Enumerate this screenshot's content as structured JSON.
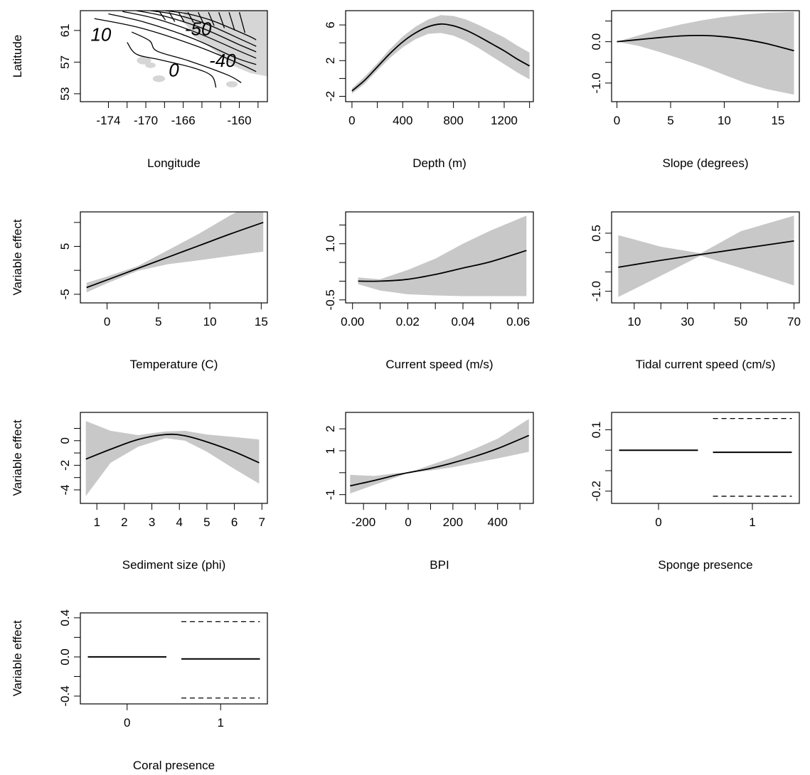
{
  "chart_data": [
    {
      "type": "contour",
      "panel": "spatial",
      "xlabel": "Longitude",
      "ylabel": "Latitude",
      "xlim": [
        -177,
        -157
      ],
      "ylim": [
        52,
        63.5
      ],
      "xticks": [
        -174,
        -170,
        -166,
        -160
      ],
      "xticks_unlabeled": [
        -172,
        -168,
        -164,
        -162,
        -158
      ],
      "yticks": [
        53,
        57,
        61
      ],
      "contour_labels": [
        {
          "text": "10",
          "x": -174.8,
          "y": 60.3
        },
        {
          "text": "-50",
          "x": -164.4,
          "y": 61.0
        },
        {
          "text": "0",
          "x": -167.0,
          "y": 55.8
        },
        {
          "text": "-40",
          "x": -161.8,
          "y": 57.0
        }
      ],
      "contours": [
        [
          [
            -175.5,
            62.5
          ],
          [
            -170.5,
            61.3
          ],
          [
            -164.5,
            59.0
          ],
          [
            -160.0,
            56.8
          ],
          [
            -158.2,
            55.8
          ]
        ],
        [
          [
            -174.0,
            63.1
          ],
          [
            -170.0,
            62.0
          ],
          [
            -165.0,
            60.0
          ],
          [
            -160.5,
            57.6
          ],
          [
            -158.2,
            56.7
          ]
        ],
        [
          [
            -172.5,
            63.4
          ],
          [
            -169.0,
            62.5
          ],
          [
            -164.5,
            60.7
          ],
          [
            -160.0,
            58.4
          ],
          [
            -158.2,
            57.5
          ]
        ],
        [
          [
            -171.0,
            63.5
          ],
          [
            -168.0,
            62.8
          ],
          [
            -164.0,
            61.3
          ],
          [
            -160.0,
            59.2
          ],
          [
            -158.2,
            58.3
          ]
        ],
        [
          [
            -169.5,
            63.5
          ],
          [
            -166.8,
            63.0
          ],
          [
            -163.5,
            61.8
          ],
          [
            -159.5,
            59.7
          ],
          [
            -158.2,
            59.0
          ]
        ],
        [
          [
            -168.0,
            63.5
          ],
          [
            -165.5,
            63.1
          ],
          [
            -162.8,
            62.2
          ],
          [
            -159.0,
            60.3
          ],
          [
            -158.2,
            59.8
          ]
        ],
        [
          [
            -172.0,
            59.5
          ],
          [
            -171.0,
            58.0
          ],
          [
            -168.5,
            57.3
          ],
          [
            -165.0,
            56.3
          ],
          [
            -163.0,
            55.3
          ],
          [
            -162.5,
            53.8
          ]
        ],
        [
          [
            -171.5,
            60.8
          ],
          [
            -169.6,
            59.7
          ],
          [
            -168.8,
            58.4
          ],
          [
            -165.5,
            57.2
          ],
          [
            -161.3,
            55.4
          ],
          [
            -159.8,
            54.4
          ]
        ]
      ],
      "hatch_segments": [
        [
          [
            -168.5,
            63.3
          ],
          [
            -167.9,
            62.3
          ]
        ],
        [
          [
            -167.5,
            63.3
          ],
          [
            -166.9,
            62.1
          ]
        ],
        [
          [
            -166.5,
            63.3
          ],
          [
            -165.9,
            62.1
          ]
        ],
        [
          [
            -165.5,
            63.3
          ],
          [
            -164.9,
            62.0
          ]
        ],
        [
          [
            -164.4,
            63.3
          ],
          [
            -163.8,
            61.8
          ]
        ],
        [
          [
            -163.3,
            63.3
          ],
          [
            -162.7,
            61.6
          ]
        ],
        [
          [
            -162.2,
            63.3
          ],
          [
            -161.6,
            61.3
          ]
        ],
        [
          [
            -161.1,
            63.3
          ],
          [
            -160.5,
            61.0
          ]
        ],
        [
          [
            -160.0,
            63.3
          ],
          [
            -159.4,
            60.7
          ]
        ]
      ],
      "land": [
        [
          -165.8,
          63.5
        ],
        [
          -157,
          63.5
        ],
        [
          -157,
          55.2
        ],
        [
          -158.8,
          55.6
        ],
        [
          -160.8,
          56.6
        ],
        [
          -162.4,
          58.2
        ],
        [
          -163.5,
          59.2
        ],
        [
          -164.8,
          60.2
        ],
        [
          -165.4,
          61.3
        ],
        [
          -166.2,
          62.3
        ]
      ],
      "islands": [
        {
          "x": -170.2,
          "y": 57.2,
          "r": 0.35
        },
        {
          "x": -169.5,
          "y": 56.6,
          "r": 0.25
        },
        {
          "x": -168.6,
          "y": 54.9,
          "r": 0.3
        },
        {
          "x": -160.8,
          "y": 54.2,
          "r": 0.28
        }
      ]
    },
    {
      "type": "line",
      "panel": "depth",
      "xlabel": "Depth (m)",
      "ylabel": "",
      "xlim": [
        -50,
        1430
      ],
      "ylim": [
        -2.6,
        7.6
      ],
      "xticks": [
        0,
        400,
        800,
        1200
      ],
      "xticks_unlabeled": [
        200,
        600,
        1000,
        1400
      ],
      "yticks": [
        -2,
        2,
        6
      ],
      "yticks_unlabeled": [
        0,
        4
      ],
      "x": [
        0,
        100,
        200,
        300,
        400,
        500,
        600,
        700,
        800,
        900,
        1000,
        1100,
        1200,
        1300,
        1400
      ],
      "y": [
        -1.4,
        -0.2,
        1.3,
        2.8,
        4.1,
        5.1,
        5.8,
        6.1,
        5.9,
        5.4,
        4.7,
        3.9,
        3.1,
        2.2,
        1.4
      ],
      "lower": [
        -1.7,
        -0.6,
        0.9,
        2.3,
        3.5,
        4.4,
        5.0,
        5.1,
        4.8,
        4.2,
        3.4,
        2.5,
        1.6,
        0.7,
        -0.1
      ],
      "upper": [
        -1.1,
        0.2,
        1.7,
        3.3,
        4.7,
        5.8,
        6.6,
        7.1,
        7.0,
        6.6,
        6.0,
        5.3,
        4.6,
        3.7,
        2.9
      ]
    },
    {
      "type": "line",
      "panel": "slope",
      "xlabel": "Slope (degrees)",
      "ylabel": "",
      "xlim": [
        -0.5,
        17
      ],
      "ylim": [
        -1.45,
        0.75
      ],
      "xticks": [
        0,
        5,
        10,
        15
      ],
      "yticks": [
        -1.0,
        0.0
      ],
      "yticks_labels": [
        "-1.0",
        "0.0"
      ],
      "yticks_unlabeled": [
        -0.5,
        0.5
      ],
      "x": [
        0,
        2,
        4,
        6,
        8,
        10,
        12,
        14,
        16.5
      ],
      "y": [
        0.0,
        0.05,
        0.1,
        0.14,
        0.15,
        0.12,
        0.05,
        -0.05,
        -0.22
      ],
      "lower": [
        0.0,
        -0.1,
        -0.25,
        -0.42,
        -0.6,
        -0.8,
        -1.0,
        -1.15,
        -1.28
      ],
      "upper": [
        0.0,
        0.15,
        0.3,
        0.42,
        0.52,
        0.6,
        0.66,
        0.7,
        0.72
      ]
    },
    {
      "type": "line",
      "panel": "temperature",
      "xlabel": "Temperature (C)",
      "ylabel": "Variable effect",
      "xlim": [
        -2.6,
        15.6
      ],
      "ylim": [
        -6.8,
        12.2
      ],
      "xticks": [
        0,
        5,
        10,
        15
      ],
      "yticks": [
        -5,
        5
      ],
      "yticks_unlabeled": [
        0,
        10
      ],
      "x": [
        -2,
        0,
        3,
        6,
        9,
        12,
        15.2
      ],
      "y": [
        -3.6,
        -2.0,
        0.4,
        2.8,
        5.2,
        7.6,
        10.0
      ],
      "lower": [
        -4.6,
        -2.7,
        -0.1,
        1.3,
        2.1,
        3.0,
        3.9
      ],
      "upper": [
        -2.6,
        -1.3,
        0.9,
        4.3,
        7.7,
        11.5,
        15.0
      ]
    },
    {
      "type": "line",
      "panel": "current-speed",
      "xlabel": "Current speed (m/s)",
      "ylabel": "",
      "xlim": [
        -0.0025,
        0.0655
      ],
      "ylim": [
        -0.58,
        1.85
      ],
      "xticks": [
        0.0,
        0.02,
        0.04,
        0.06
      ],
      "xticks_labels": [
        "0.00",
        "0.02",
        "0.04",
        "0.06"
      ],
      "xticks_unlabeled": [
        0.01,
        0.03,
        0.05
      ],
      "yticks": [
        -0.5,
        1.0
      ],
      "yticks_labels": [
        "-0.5",
        "1.0"
      ],
      "yticks_unlabeled": [
        0.0,
        0.5,
        1.5
      ],
      "x": [
        0.002,
        0.01,
        0.02,
        0.03,
        0.04,
        0.05,
        0.063
      ],
      "y": [
        0.0,
        0.0,
        0.05,
        0.18,
        0.35,
        0.52,
        0.82
      ],
      "lower": [
        -0.08,
        -0.25,
        -0.35,
        -0.38,
        -0.4,
        -0.4,
        -0.4
      ],
      "upper": [
        0.1,
        0.05,
        0.3,
        0.6,
        1.0,
        1.35,
        1.75
      ]
    },
    {
      "type": "line",
      "panel": "tidal-current-speed",
      "xlabel": "Tidal current speed (cm/s)",
      "ylabel": "",
      "xlim": [
        1.5,
        72
      ],
      "ylim": [
        -1.3,
        1.05
      ],
      "xticks": [
        10,
        30,
        50,
        70
      ],
      "xticks_unlabeled": [
        20,
        40,
        60
      ],
      "yticks": [
        -1.0,
        0.5
      ],
      "yticks_labels": [
        "-1.0",
        "0.5"
      ],
      "yticks_unlabeled": [
        -0.5,
        0.0
      ],
      "x": [
        4,
        20,
        35,
        50,
        70
      ],
      "y": [
        -0.38,
        -0.2,
        -0.05,
        0.1,
        0.3
      ],
      "lower": [
        -1.15,
        -0.6,
        -0.08,
        -0.4,
        -0.85
      ],
      "upper": [
        0.45,
        0.15,
        -0.02,
        0.55,
        0.95
      ]
    },
    {
      "type": "line",
      "panel": "sediment-size",
      "xlabel": "Sediment size (phi)",
      "ylabel": "Variable effect",
      "xlim": [
        0.4,
        7.2
      ],
      "ylim": [
        -5.1,
        2.3
      ],
      "xticks": [
        1,
        2,
        3,
        4,
        5,
        6,
        7
      ],
      "yticks": [
        -4,
        -2,
        0
      ],
      "yticks_unlabeled": [
        -3,
        -1,
        1
      ],
      "x": [
        0.6,
        1.5,
        2.5,
        3.5,
        4.2,
        5.0,
        6.0,
        6.9
      ],
      "y": [
        -1.5,
        -0.7,
        0.1,
        0.5,
        0.4,
        -0.1,
        -0.9,
        -1.8
      ],
      "lower": [
        -4.5,
        -1.8,
        -0.5,
        0.2,
        0.0,
        -0.9,
        -2.3,
        -3.5
      ],
      "upper": [
        1.6,
        0.8,
        0.45,
        0.75,
        0.8,
        0.5,
        0.3,
        0.1
      ]
    },
    {
      "type": "line",
      "panel": "bpi",
      "xlabel": "BPI",
      "ylabel": "",
      "xlim": [
        -280,
        560
      ],
      "ylim": [
        -1.4,
        2.75
      ],
      "xticks": [
        -200,
        0,
        200,
        400
      ],
      "xticks_unlabeled": [
        -100,
        100,
        300,
        500
      ],
      "yticks": [
        -1,
        1,
        2
      ],
      "yticks_unlabeled": [
        0
      ],
      "x": [
        -260,
        -150,
        -50,
        0,
        100,
        200,
        300,
        400,
        540
      ],
      "y": [
        -0.6,
        -0.35,
        -0.1,
        0.0,
        0.2,
        0.45,
        0.75,
        1.1,
        1.7
      ],
      "lower": [
        -0.95,
        -0.55,
        -0.2,
        0.0,
        0.1,
        0.25,
        0.45,
        0.65,
        0.95
      ],
      "upper": [
        -0.1,
        -0.15,
        -0.02,
        0.0,
        0.35,
        0.7,
        1.1,
        1.55,
        2.45
      ]
    },
    {
      "type": "categorical",
      "panel": "sponge-presence",
      "xlabel": "Sponge presence",
      "ylabel": "",
      "ylim": [
        -0.26,
        0.185
      ],
      "yticks": [
        -0.2,
        0.1
      ],
      "yticks_labels": [
        "-0.2",
        "0.1"
      ],
      "yticks_unlabeled": [
        -0.1,
        0.0
      ],
      "categories": [
        "0",
        "1"
      ],
      "values": [
        0.0,
        -0.01
      ],
      "lower": [
        null,
        -0.225
      ],
      "upper": [
        null,
        0.155
      ]
    },
    {
      "type": "categorical",
      "panel": "coral-presence",
      "xlabel": "Coral presence",
      "ylabel": "Variable effect",
      "ylim": [
        -0.48,
        0.45
      ],
      "yticks": [
        -0.4,
        0.0,
        0.4
      ],
      "yticks_labels": [
        "-0.4",
        "0.0",
        "0.4"
      ],
      "yticks_unlabeled": [
        -0.2,
        0.2
      ],
      "categories": [
        "0",
        "1"
      ],
      "values": [
        0.0,
        -0.02
      ],
      "lower": [
        null,
        -0.42
      ],
      "upper": [
        null,
        0.36
      ]
    }
  ]
}
